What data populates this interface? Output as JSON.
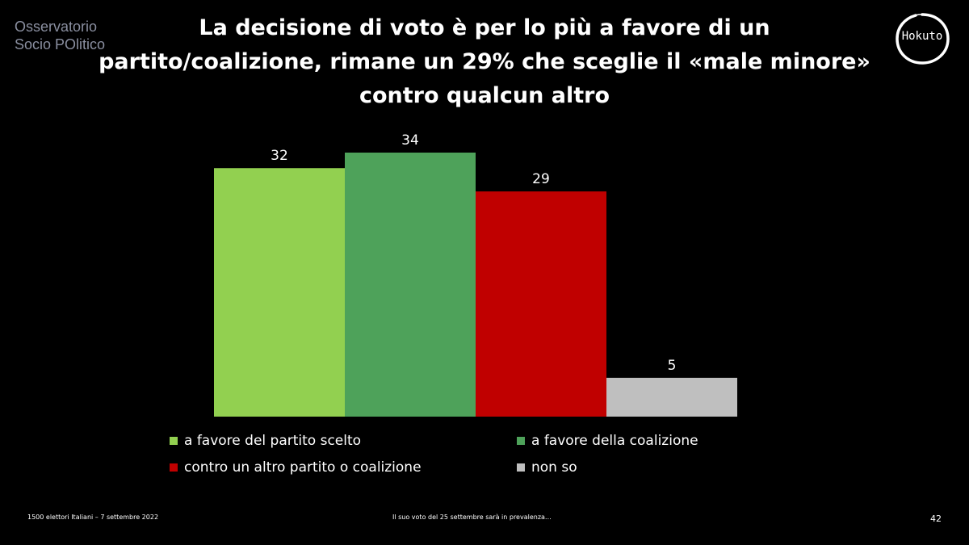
{
  "brand": {
    "line1": "Osservatorio",
    "line2": "Socio POlitico"
  },
  "logo": {
    "text": "Hokuto"
  },
  "title": {
    "line1": "La decisione di voto è per lo più a favore di un",
    "line2": "partito/coalizione,  rimane un 29% che sceglie il «male minore»",
    "line3": "contro qualcun altro"
  },
  "chart_data": {
    "type": "bar",
    "categories": [
      "a favore del partito scelto",
      "a favore della coalizione",
      "contro un altro partito o coalizione",
      "non so"
    ],
    "values": [
      32,
      34,
      29,
      5
    ],
    "colors": [
      "#92d050",
      "#4ea25a",
      "#c00000",
      "#bfbfbf"
    ],
    "title": "",
    "xlabel": "",
    "ylabel": "",
    "ylim": [
      0,
      34
    ],
    "grid": false,
    "legend_position": "bottom"
  },
  "footer": {
    "left": "1500 elettori Italiani – 7 settembre 2022",
    "center": "Il suo voto del 25 settembre sarà in prevalenza…",
    "page": "42"
  }
}
